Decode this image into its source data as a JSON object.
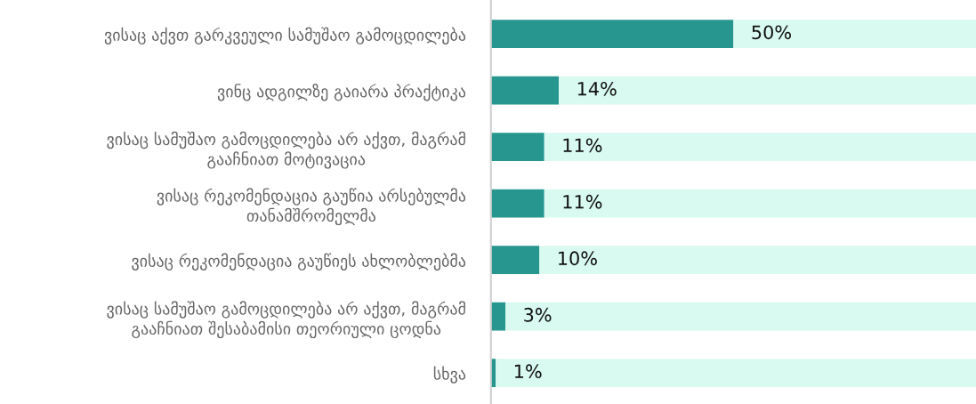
{
  "chart_data": {
    "type": "bar",
    "orientation": "horizontal",
    "stacked": true,
    "categories": [
      "ვისაც აქვთ გარკვეული სამუშაო გამოცდილება",
      "ვინც ადგილზე გაიარა პრაქტიკა",
      "ვისაც სამუშაო გამოცდილება არ აქვთ, მაგრამ\nგააჩნიათ მოტივაცია",
      "ვისაც რეკომენდაცია გაუწია არსებულმა\nთანამშრომელმა",
      "ვისაც რეკომენდაცია გაუწიეს ახლობლებმა",
      "ვისაც სამუშაო გამოცდილება არ აქვთ, მაგრამ\nგააჩნიათ შესაბამისი თეორიული ცოდნა",
      "სხვა"
    ],
    "series": [
      {
        "color": "#26968f",
        "values": [
          50,
          14,
          11,
          11,
          10,
          3,
          1
        ],
        "value_labels": [
          "50%",
          "14%",
          "11%",
          "11%",
          "10%",
          "3%",
          "1%"
        ]
      },
      {
        "color": "#d9faf0",
        "values": [
          50,
          86,
          89,
          89,
          90,
          97,
          99
        ]
      }
    ],
    "xlim": [
      0,
      100
    ],
    "tick_labels": "y",
    "grid": false,
    "legend": false
  }
}
